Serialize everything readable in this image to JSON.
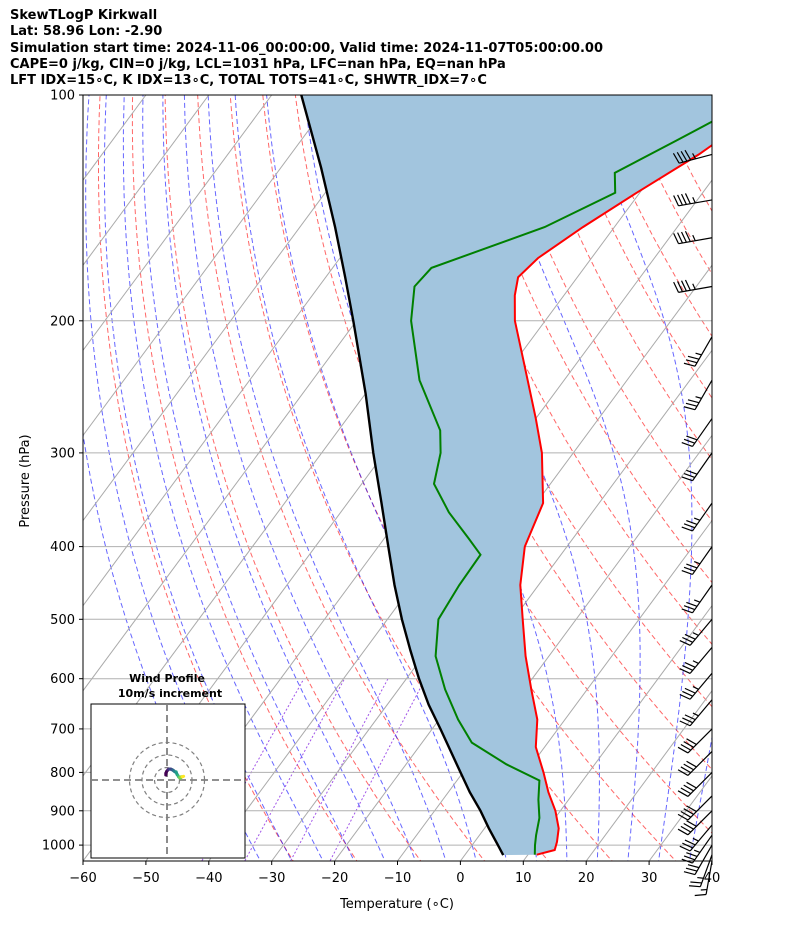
{
  "header": {
    "title": "SkewTLogP Kirkwall",
    "location": "Lat: 58.96   Lon: -2.90",
    "times": "Simulation start time: 2024-11-06_00:00:00, Valid time: 2024-11-07T05:00:00.00",
    "indices1": "CAPE=0 j/kg, CIN=0 j/kg, LCL=1031 hPa, LFC=nan hPa, EQ=nan hPa",
    "indices2": "LFT IDX=15∘C, K IDX=13∘C, TOTAL TOTS=41∘C, SHWTR_IDX=7∘C"
  },
  "colors": {
    "temperature": "#ff0000",
    "dewpoint": "#008000",
    "parcel": "#000000",
    "cape_fill": "#a2c5de",
    "dry_adiabat": "#ff0000",
    "moist_adiabat": "#0000ff",
    "mixing_ratio": "#8a2be2",
    "isotherm": "#aaaaaa"
  },
  "chart_data": {
    "type": "line",
    "subtype": "skew-T log-P",
    "xlabel": "Temperature (∘C)",
    "ylabel": "Pressure (hPa)",
    "x_ticks": [
      -60,
      -50,
      -40,
      -30,
      -20,
      -10,
      0,
      10,
      20,
      30,
      40
    ],
    "y_ticks": [
      100,
      200,
      300,
      400,
      500,
      600,
      700,
      800,
      900,
      1000
    ],
    "xlim": [
      -60,
      40
    ],
    "ylim": [
      1050,
      100
    ],
    "y_scale": "log",
    "grid": true,
    "series": [
      {
        "key": "temperature",
        "points": [
          [
            100,
            -39.7
          ],
          [
            110,
            -42.0
          ],
          [
            120,
            -45.1
          ],
          [
            135,
            -50.5
          ],
          [
            150,
            -55.0
          ],
          [
            165,
            -58.5
          ],
          [
            175,
            -59.4
          ],
          [
            185,
            -57.8
          ],
          [
            200,
            -54.8
          ],
          [
            230,
            -47.9
          ],
          [
            270,
            -40.0
          ],
          [
            300,
            -35.0
          ],
          [
            350,
            -28.9
          ],
          [
            400,
            -26.7
          ],
          [
            450,
            -22.9
          ],
          [
            500,
            -18.5
          ],
          [
            560,
            -13.7
          ],
          [
            620,
            -8.9
          ],
          [
            680,
            -4.4
          ],
          [
            740,
            -1.4
          ],
          [
            800,
            2.8
          ],
          [
            850,
            5.9
          ],
          [
            900,
            9.2
          ],
          [
            950,
            11.8
          ],
          [
            990,
            13.1
          ],
          [
            1015,
            13.7
          ],
          [
            1030,
            11.4
          ]
        ]
      },
      {
        "key": "dewpoint",
        "points": [
          [
            100,
            -42.0
          ],
          [
            115,
            -50.3
          ],
          [
            127,
            -56.3
          ],
          [
            135,
            -53.9
          ],
          [
            150,
            -61.1
          ],
          [
            170,
            -74.3
          ],
          [
            180,
            -74.8
          ],
          [
            200,
            -71.3
          ],
          [
            240,
            -63.0
          ],
          [
            280,
            -53.8
          ],
          [
            300,
            -51.1
          ],
          [
            330,
            -48.5
          ],
          [
            360,
            -42.8
          ],
          [
            390,
            -36.6
          ],
          [
            410,
            -32.8
          ],
          [
            450,
            -32.6
          ],
          [
            500,
            -31.9
          ],
          [
            560,
            -28.0
          ],
          [
            620,
            -22.6
          ],
          [
            680,
            -17.0
          ],
          [
            730,
            -12.1
          ],
          [
            780,
            -4.1
          ],
          [
            820,
            3.1
          ],
          [
            870,
            5.2
          ],
          [
            920,
            7.5
          ],
          [
            970,
            9.0
          ],
          [
            1000,
            10.0
          ],
          [
            1030,
            11.1
          ]
        ]
      },
      {
        "key": "parcel",
        "points": [
          [
            100,
            -115.3
          ],
          [
            125,
            -103.6
          ],
          [
            150,
            -94.4
          ],
          [
            175,
            -86.9
          ],
          [
            200,
            -80.5
          ],
          [
            250,
            -70.0
          ],
          [
            300,
            -61.8
          ],
          [
            350,
            -54.6
          ],
          [
            400,
            -48.4
          ],
          [
            450,
            -42.9
          ],
          [
            500,
            -37.7
          ],
          [
            550,
            -32.7
          ],
          [
            600,
            -28.0
          ],
          [
            650,
            -23.4
          ],
          [
            700,
            -18.7
          ],
          [
            750,
            -14.4
          ],
          [
            800,
            -10.4
          ],
          [
            850,
            -6.6
          ],
          [
            900,
            -2.7
          ],
          [
            950,
            0.7
          ],
          [
            1000,
            4.1
          ],
          [
            1031,
            6.1
          ]
        ]
      }
    ],
    "wind_barbs": {
      "pressures": [
        1050,
        1030,
        1000,
        970,
        940,
        900,
        860,
        800,
        750,
        700,
        640,
        590,
        545,
        500,
        450,
        400,
        350,
        300,
        270,
        240,
        210,
        180,
        155,
        138,
        120
      ],
      "speed_kt": [
        15,
        25,
        30,
        35,
        35,
        40,
        40,
        40,
        40,
        40,
        35,
        35,
        35,
        35,
        35,
        35,
        35,
        30,
        30,
        35,
        35,
        45,
        45,
        45,
        45
      ],
      "direction_deg": [
        190,
        200,
        210,
        215,
        220,
        225,
        225,
        225,
        225,
        225,
        220,
        220,
        220,
        220,
        215,
        215,
        215,
        215,
        215,
        210,
        210,
        260,
        260,
        260,
        255
      ]
    }
  },
  "hodograph": {
    "title_line1": "Wind Profile",
    "title_line2": "10m/s increment",
    "rings_ms": [
      10,
      20,
      30
    ],
    "u": [
      -1.0,
      -0.9,
      -0.2,
      0.8,
      1.5,
      2.2,
      3.0,
      3.6,
      4.5,
      5.0,
      5.8,
      6.5,
      7.3,
      7.8,
      8.3,
      8.8,
      9.3,
      9.8,
      10.3,
      10.8,
      11.3,
      11.8,
      12.3,
      12.8,
      13.3
    ],
    "v": [
      4.0,
      5.5,
      7.0,
      8.2,
      8.7,
      8.8,
      8.7,
      8.4,
      8.0,
      7.6,
      7.0,
      6.5,
      6.5,
      5.0,
      4.0,
      3.5,
      2.5,
      2.0,
      1.5,
      1.5,
      2.5,
      2.5,
      2.6,
      2.8,
      3.0
    ]
  }
}
